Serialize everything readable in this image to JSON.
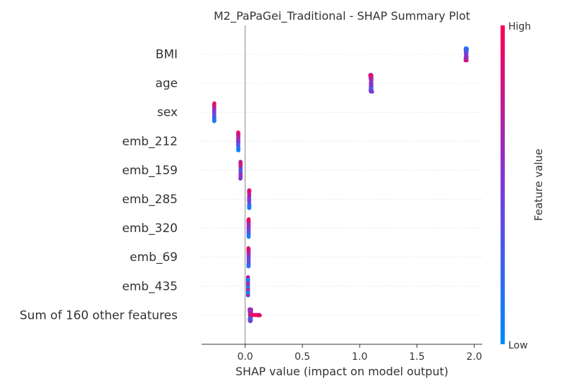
{
  "chart_data": {
    "type": "scatter",
    "subtype": "shap-beeswarm",
    "title": "M2_PaPaGei_Traditional - SHAP Summary Plot",
    "xlabel": "SHAP value (impact on model output)",
    "ylabel": "",
    "xlim": [
      -0.38,
      2.07
    ],
    "x_ticks": [
      0.0,
      0.5,
      1.0,
      1.5,
      2.0
    ],
    "x_tick_labels": [
      "0.0",
      "0.5",
      "1.0",
      "1.5",
      "2.0"
    ],
    "grid": "horizontal dotted per feature",
    "features": [
      {
        "name": "BMI",
        "center": 1.93,
        "spread": 0.012,
        "vspread": 0.22,
        "tilt": -0.7,
        "extent": [
          1.89,
          1.96
        ]
      },
      {
        "name": "age",
        "center": 1.1,
        "spread": 0.013,
        "vspread": 0.3,
        "tilt": 0.3,
        "extent": [
          1.07,
          1.13
        ]
      },
      {
        "name": "sex",
        "center": -0.27,
        "spread": 0.004,
        "vspread": 0.32,
        "tilt": 0.9,
        "extent": [
          -0.28,
          -0.26
        ]
      },
      {
        "name": "emb_212",
        "center": -0.06,
        "spread": 0.004,
        "vspread": 0.32,
        "tilt": 0.9,
        "extent": [
          -0.07,
          -0.05
        ]
      },
      {
        "name": "emb_159",
        "center": -0.04,
        "spread": 0.003,
        "vspread": 0.3,
        "tilt": 0.4,
        "extent": [
          -0.05,
          -0.03
        ]
      },
      {
        "name": "emb_285",
        "center": 0.035,
        "spread": 0.004,
        "vspread": 0.32,
        "tilt": 0.9,
        "extent": [
          0.02,
          0.05
        ]
      },
      {
        "name": "emb_320",
        "center": 0.03,
        "spread": 0.004,
        "vspread": 0.32,
        "tilt": 0.8,
        "extent": [
          0.02,
          0.045
        ]
      },
      {
        "name": "emb_69",
        "center": 0.03,
        "spread": 0.004,
        "vspread": 0.32,
        "tilt": 0.8,
        "extent": [
          0.02,
          0.045
        ]
      },
      {
        "name": "emb_435",
        "center": 0.025,
        "spread": 0.003,
        "vspread": 0.32,
        "tilt": 0.0,
        "extent": [
          0.015,
          0.04
        ]
      },
      {
        "name": "Sum of 160 other features",
        "center": 0.045,
        "spread": 0.015,
        "vspread": 0.22,
        "tilt": 0.5,
        "extent": [
          0.0,
          0.13
        ]
      }
    ],
    "colorbar": {
      "label": "Feature value",
      "high_label": "High",
      "low_label": "Low",
      "high_color": "#ff0052",
      "mid_color": "#7c3ad8",
      "low_color": "#008bfb"
    },
    "zero_line_color": "#999999"
  }
}
